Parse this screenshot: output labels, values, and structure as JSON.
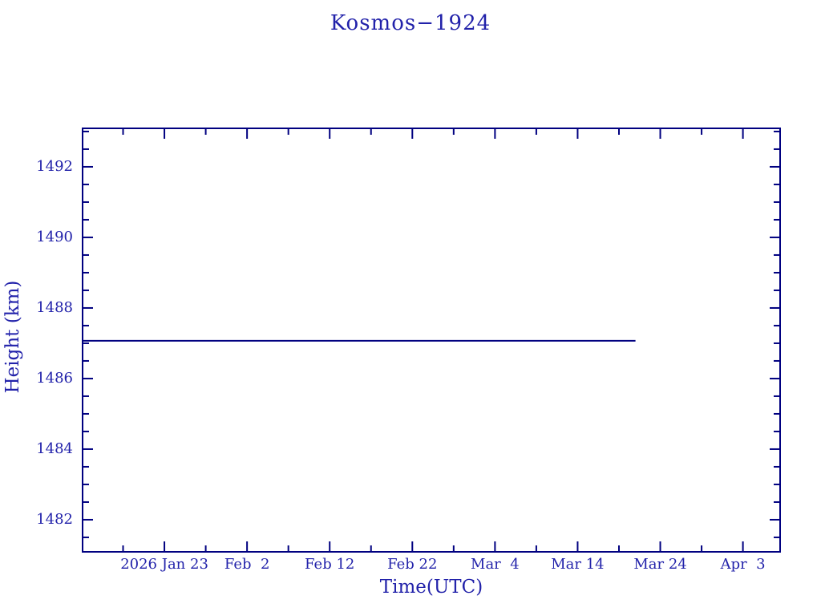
{
  "page": {
    "background": "#ffffff"
  },
  "colors": {
    "text": "#2222aa",
    "axis": "#000080",
    "series_line": "#000080"
  },
  "chart_data": {
    "type": "line",
    "title": "Kosmos−1924",
    "xlabel": "Time(UTC)",
    "ylabel": "Height (km)",
    "grid": false,
    "legend": null,
    "x_axis": {
      "unit": "days since 2026 Jan 23",
      "domain": [
        -9.9,
        74.5
      ],
      "major_ticks": [
        0,
        10,
        20,
        30,
        40,
        50,
        60,
        70
      ],
      "major_tick_labels": [
        "2026 Jan 23",
        "Feb  2",
        "Feb 12",
        "Feb 22",
        "Mar  4",
        "Mar 14",
        "Mar 24",
        "Apr  3"
      ],
      "minor_ticks": [
        -5,
        5,
        15,
        25,
        35,
        45,
        55,
        65
      ]
    },
    "y_axis": {
      "domain": [
        1481.09,
        1493.09
      ],
      "major_ticks": [
        1482,
        1484,
        1486,
        1488,
        1490,
        1492
      ],
      "major_tick_labels": [
        "1482",
        "1484",
        "1486",
        "1488",
        "1490",
        "1492"
      ],
      "minor_tick_step": 0.5
    },
    "series": [
      {
        "name": "height-km",
        "color": "#000080",
        "points": [
          [
            -9.9,
            1487.07
          ],
          [
            57.0,
            1487.07
          ]
        ]
      }
    ]
  }
}
